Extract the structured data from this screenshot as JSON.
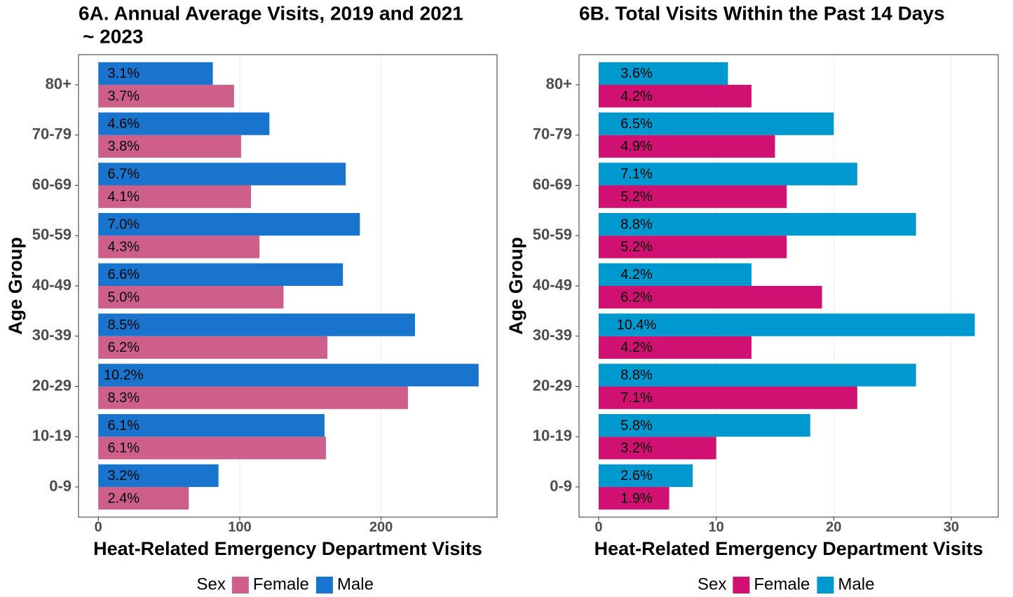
{
  "chart_data": [
    {
      "type": "bar",
      "orientation": "horizontal",
      "title": [
        "6A. Annual Average Visits, 2019 and 2021",
        "~ 2023"
      ],
      "x_label": "Heat-Related Emergency Department Visits",
      "y_label": "Age Group",
      "categories": [
        "0-9",
        "10-19",
        "20-29",
        "30-39",
        "40-49",
        "50-59",
        "60-69",
        "70-79",
        "80+"
      ],
      "series": [
        {
          "name": "Female",
          "color": "#cd5f8a",
          "values": [
            64,
            161,
            219,
            162,
            131,
            114,
            108,
            101,
            96
          ],
          "labels": [
            "2.4%",
            "6.1%",
            "8.3%",
            "6.2%",
            "5.0%",
            "4.3%",
            "4.1%",
            "3.8%",
            "3.7%"
          ]
        },
        {
          "name": "Male",
          "color": "#1874cd",
          "values": [
            85,
            160,
            269,
            224,
            173,
            185,
            175,
            121,
            81
          ],
          "labels": [
            "3.2%",
            "6.1%",
            "10.2%",
            "8.5%",
            "6.6%",
            "7.0%",
            "6.7%",
            "4.6%",
            "3.1%"
          ]
        }
      ],
      "xlim": [
        -14,
        282
      ],
      "xticks": [
        0,
        100,
        200
      ],
      "grid": true,
      "legend_title": "Sex",
      "legend_position": "bottom"
    },
    {
      "type": "bar",
      "orientation": "horizontal",
      "title": [
        "6B. Total Visits Within the Past 14 Days"
      ],
      "x_label": "Heat-Related Emergency Department Visits",
      "y_label": "Age Group",
      "categories": [
        "0-9",
        "10-19",
        "20-29",
        "30-39",
        "40-49",
        "50-59",
        "60-69",
        "70-79",
        "80+"
      ],
      "series": [
        {
          "name": "Female",
          "color": "#d01171",
          "values": [
            6,
            10,
            22,
            13,
            19,
            16,
            16,
            15,
            13
          ],
          "labels": [
            "1.9%",
            "3.2%",
            "7.1%",
            "4.2%",
            "6.2%",
            "5.2%",
            "5.2%",
            "4.9%",
            "4.2%"
          ]
        },
        {
          "name": "Male",
          "color": "#0099cf",
          "values": [
            8,
            18,
            27,
            32,
            13,
            27,
            22,
            20,
            11
          ],
          "labels": [
            "2.6%",
            "5.8%",
            "8.8%",
            "10.4%",
            "4.2%",
            "8.8%",
            "7.1%",
            "6.5%",
            "3.6%"
          ]
        }
      ],
      "xlim": [
        -1.67,
        34
      ],
      "xticks": [
        0,
        10,
        20,
        30
      ],
      "grid": true,
      "legend_title": "Sex",
      "legend_position": "bottom"
    }
  ]
}
